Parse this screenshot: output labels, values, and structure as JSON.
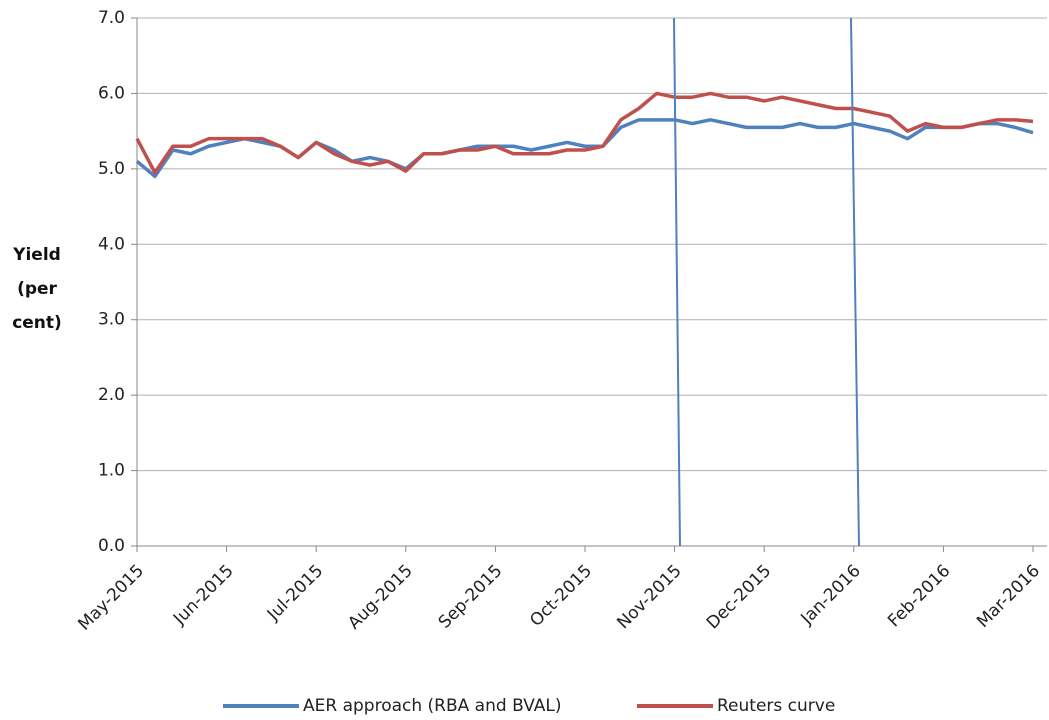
{
  "chart_data": {
    "type": "line",
    "ylabel": "Yield (per cent)",
    "categories": [
      "May-2015",
      null,
      null,
      null,
      null,
      "Jun-2015",
      null,
      null,
      null,
      null,
      "Jul-2015",
      null,
      null,
      null,
      null,
      "Aug-2015",
      null,
      null,
      null,
      null,
      "Sep-2015",
      null,
      null,
      null,
      null,
      "Oct-2015",
      null,
      null,
      null,
      null,
      "Nov-2015",
      null,
      null,
      null,
      null,
      "Dec-2015",
      null,
      null,
      null,
      null,
      "Jan-2016",
      null,
      null,
      null,
      null,
      "Feb-2016",
      null,
      null,
      null,
      null,
      "Mar-2016"
    ],
    "series": [
      {
        "name": "AER approach (RBA and BVAL)",
        "color": "#4f81bd",
        "values": [
          5.1,
          4.9,
          5.25,
          5.2,
          5.3,
          5.35,
          5.4,
          5.35,
          5.3,
          5.15,
          5.35,
          5.25,
          5.1,
          5.15,
          5.1,
          5.0,
          5.2,
          5.2,
          5.25,
          5.3,
          5.3,
          5.3,
          5.25,
          5.3,
          5.35,
          5.3,
          5.3,
          5.55,
          5.65,
          5.65,
          5.65,
          5.6,
          5.65,
          5.6,
          5.55,
          5.55,
          5.55,
          5.6,
          5.55,
          5.55,
          5.6,
          5.55,
          5.5,
          5.4,
          5.55,
          5.55,
          5.55,
          5.6,
          5.6,
          5.55,
          5.48
        ]
      },
      {
        "name": "Reuters curve",
        "color": "#c0504d",
        "values": [
          5.4,
          4.95,
          5.3,
          5.3,
          5.4,
          5.4,
          5.4,
          5.4,
          5.3,
          5.15,
          5.35,
          5.2,
          5.1,
          5.05,
          5.1,
          4.97,
          5.2,
          5.2,
          5.25,
          5.25,
          5.3,
          5.2,
          5.2,
          5.2,
          5.25,
          5.25,
          5.3,
          5.65,
          5.8,
          6.0,
          5.95,
          5.95,
          6.0,
          5.95,
          5.95,
          5.9,
          5.95,
          5.9,
          5.85,
          5.8,
          5.8,
          5.75,
          5.7,
          5.5,
          5.6,
          5.55,
          5.55,
          5.6,
          5.65,
          5.65,
          5.63
        ]
      }
    ],
    "ylim": [
      0,
      7
    ],
    "yticks": [
      {
        "value": 0,
        "label": "0.0"
      },
      {
        "value": 1,
        "label": "1.0"
      },
      {
        "value": 2,
        "label": "2.0"
      },
      {
        "value": 3,
        "label": "3.0"
      },
      {
        "value": 4,
        "label": "4.0"
      },
      {
        "value": 5,
        "label": "5.0"
      },
      {
        "value": 6,
        "label": "6.0"
      },
      {
        "value": 7,
        "label": "7.0"
      }
    ],
    "grid": true
  }
}
